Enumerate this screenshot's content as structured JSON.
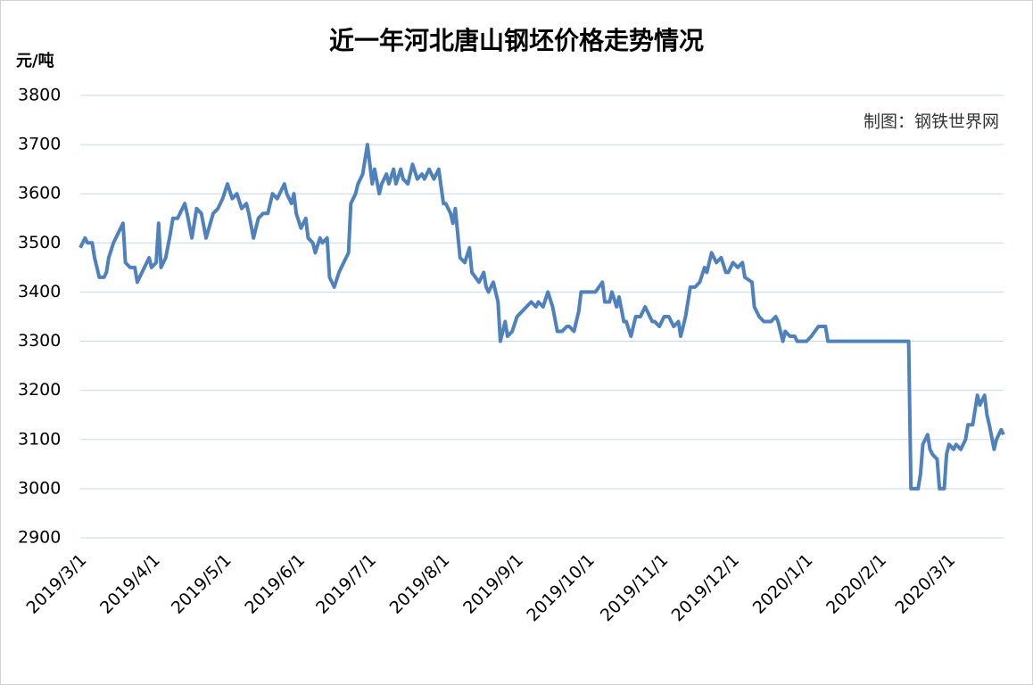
{
  "chart_data": {
    "type": "line",
    "title": "近一年河北唐山钢坯价格走势情况",
    "y_label": "元/吨",
    "annotation": "制图：钢铁世界网",
    "xlim": [
      "2019/3/1",
      "2020/3/24"
    ],
    "xticks": [
      "2019/3/1",
      "2019/4/1",
      "2019/5/1",
      "2019/6/1",
      "2019/7/1",
      "2019/8/1",
      "2019/9/1",
      "2019/10/1",
      "2019/11/1",
      "2019/12/1",
      "2020/1/1",
      "2020/2/1",
      "2020/3/1"
    ],
    "ylim": [
      2900,
      3800
    ],
    "yticks": [
      2900,
      3000,
      3100,
      3200,
      3300,
      3400,
      3500,
      3600,
      3700,
      3800
    ],
    "grid": true,
    "series": [
      {
        "color": "#4f81bd",
        "x": [
          "2019/3/1",
          "2019/3/2",
          "2019/3/3",
          "2019/3/4",
          "2019/3/6",
          "2019/3/7",
          "2019/3/9",
          "2019/3/11",
          "2019/3/12",
          "2019/3/13",
          "2019/3/15",
          "2019/3/17",
          "2019/3/19",
          "2019/3/20",
          "2019/3/22",
          "2019/3/24",
          "2019/3/25",
          "2019/3/27",
          "2019/3/30",
          "2019/3/31",
          "2019/4/2",
          "2019/4/3",
          "2019/4/4",
          "2019/4/6",
          "2019/4/8",
          "2019/4/9",
          "2019/4/11",
          "2019/4/14",
          "2019/4/15",
          "2019/4/17",
          "2019/4/19",
          "2019/4/21",
          "2019/4/23",
          "2019/4/26",
          "2019/4/28",
          "2019/4/30",
          "2019/5/2",
          "2019/5/4",
          "2019/5/6",
          "2019/5/8",
          "2019/5/10",
          "2019/5/11",
          "2019/5/13",
          "2019/5/15",
          "2019/5/17",
          "2019/5/19",
          "2019/5/21",
          "2019/5/23",
          "2019/5/26",
          "2019/5/27",
          "2019/5/29",
          "2019/5/30",
          "2019/5/31",
          "2019/6/2",
          "2019/6/4",
          "2019/6/5",
          "2019/6/7",
          "2019/6/8",
          "2019/6/10",
          "2019/6/11",
          "2019/6/13",
          "2019/6/14",
          "2019/6/16",
          "2019/6/18",
          "2019/6/20",
          "2019/6/22",
          "2019/6/23",
          "2019/6/25",
          "2019/6/26",
          "2019/6/28",
          "2019/6/30",
          "2019/7/2",
          "2019/7/3",
          "2019/7/5",
          "2019/7/6",
          "2019/7/8",
          "2019/7/9",
          "2019/7/11",
          "2019/7/12",
          "2019/7/14",
          "2019/7/15",
          "2019/7/17",
          "2019/7/19",
          "2019/7/21",
          "2019/7/23",
          "2019/7/24",
          "2019/7/26",
          "2019/7/28",
          "2019/7/30",
          "2019/8/1",
          "2019/8/2",
          "2019/8/4",
          "2019/8/5",
          "2019/8/6",
          "2019/8/8",
          "2019/8/10",
          "2019/8/12",
          "2019/8/13",
          "2019/8/16",
          "2019/8/18",
          "2019/8/19",
          "2019/8/20",
          "2019/8/22",
          "2019/8/24",
          "2019/8/25",
          "2019/8/27",
          "2019/8/28",
          "2019/8/30",
          "2019/9/1",
          "2019/9/3",
          "2019/9/5",
          "2019/9/7",
          "2019/9/9",
          "2019/9/10",
          "2019/9/12",
          "2019/9/14",
          "2019/9/16",
          "2019/9/18",
          "2019/9/20",
          "2019/9/22",
          "2019/9/23",
          "2019/9/25",
          "2019/9/27",
          "2019/9/28",
          "2019/10/1",
          "2019/10/4",
          "2019/10/7",
          "2019/10/8",
          "2019/10/10",
          "2019/10/11",
          "2019/10/13",
          "2019/10/14",
          "2019/10/16",
          "2019/10/17",
          "2019/10/19",
          "2019/10/21",
          "2019/10/23",
          "2019/10/25",
          "2019/10/26",
          "2019/10/28",
          "2019/10/29",
          "2019/10/31",
          "2019/11/2",
          "2019/11/4",
          "2019/11/6",
          "2019/11/8",
          "2019/11/9",
          "2019/11/11",
          "2019/11/13",
          "2019/11/15",
          "2019/11/17",
          "2019/11/19",
          "2019/11/20",
          "2019/11/22",
          "2019/11/24",
          "2019/11/26",
          "2019/11/28",
          "2019/11/29",
          "2019/12/1",
          "2019/12/3",
          "2019/12/5",
          "2019/12/6",
          "2019/12/9",
          "2019/12/10",
          "2019/12/12",
          "2019/12/14",
          "2019/12/17",
          "2019/12/19",
          "2019/12/20",
          "2019/12/22",
          "2019/12/23",
          "2019/12/25",
          "2019/12/27",
          "2019/12/28",
          "2020/1/1",
          "2020/1/3",
          "2020/1/6",
          "2020/1/9",
          "2020/1/10",
          "2020/2/13",
          "2020/2/14",
          "2020/2/17",
          "2020/2/18",
          "2020/2/19",
          "2020/2/21",
          "2020/2/22",
          "2020/2/23",
          "2020/2/25",
          "2020/2/26",
          "2020/2/28",
          "2020/2/29",
          "2020/3/1",
          "2020/3/3",
          "2020/3/4",
          "2020/3/6",
          "2020/3/8",
          "2020/3/9",
          "2020/3/11",
          "2020/3/13",
          "2020/3/14",
          "2020/3/16",
          "2020/3/17",
          "2020/3/18",
          "2020/3/20",
          "2020/3/21",
          "2020/3/23",
          "2020/3/24"
        ],
        "values": [
          3490,
          3500,
          3510,
          3500,
          3500,
          3470,
          3430,
          3430,
          3440,
          3470,
          3500,
          3520,
          3540,
          3460,
          3450,
          3450,
          3420,
          3440,
          3470,
          3450,
          3460,
          3540,
          3450,
          3470,
          3520,
          3550,
          3550,
          3580,
          3560,
          3510,
          3570,
          3560,
          3510,
          3560,
          3570,
          3590,
          3620,
          3590,
          3600,
          3570,
          3580,
          3560,
          3510,
          3550,
          3560,
          3560,
          3600,
          3590,
          3620,
          3600,
          3580,
          3600,
          3560,
          3530,
          3550,
          3510,
          3500,
          3480,
          3510,
          3500,
          3510,
          3430,
          3410,
          3440,
          3460,
          3480,
          3580,
          3600,
          3620,
          3640,
          3700,
          3620,
          3650,
          3600,
          3620,
          3640,
          3620,
          3650,
          3620,
          3650,
          3630,
          3620,
          3660,
          3630,
          3640,
          3630,
          3650,
          3630,
          3650,
          3580,
          3580,
          3560,
          3540,
          3570,
          3470,
          3460,
          3490,
          3440,
          3420,
          3440,
          3410,
          3400,
          3420,
          3380,
          3300,
          3340,
          3310,
          3320,
          3350,
          3360,
          3370,
          3380,
          3370,
          3380,
          3370,
          3400,
          3370,
          3320,
          3320,
          3330,
          3330,
          3320,
          3360,
          3400,
          3400,
          3400,
          3420,
          3380,
          3380,
          3400,
          3370,
          3390,
          3340,
          3340,
          3310,
          3350,
          3350,
          3370,
          3360,
          3340,
          3340,
          3330,
          3350,
          3350,
          3330,
          3340,
          3310,
          3350,
          3410,
          3410,
          3420,
          3450,
          3440,
          3480,
          3460,
          3470,
          3440,
          3440,
          3460,
          3450,
          3460,
          3430,
          3420,
          3370,
          3350,
          3340,
          3340,
          3350,
          3340,
          3300,
          3320,
          3310,
          3310,
          3300,
          3300,
          3310,
          3330,
          3330,
          3300,
          3300,
          3000,
          3000,
          3030,
          3090,
          3110,
          3080,
          3070,
          3060,
          3000,
          3000,
          3070,
          3090,
          3080,
          3090,
          3080,
          3100,
          3130,
          3130,
          3190,
          3170,
          3190,
          3150,
          3130,
          3080,
          3100,
          3120,
          3110
        ]
      }
    ]
  }
}
